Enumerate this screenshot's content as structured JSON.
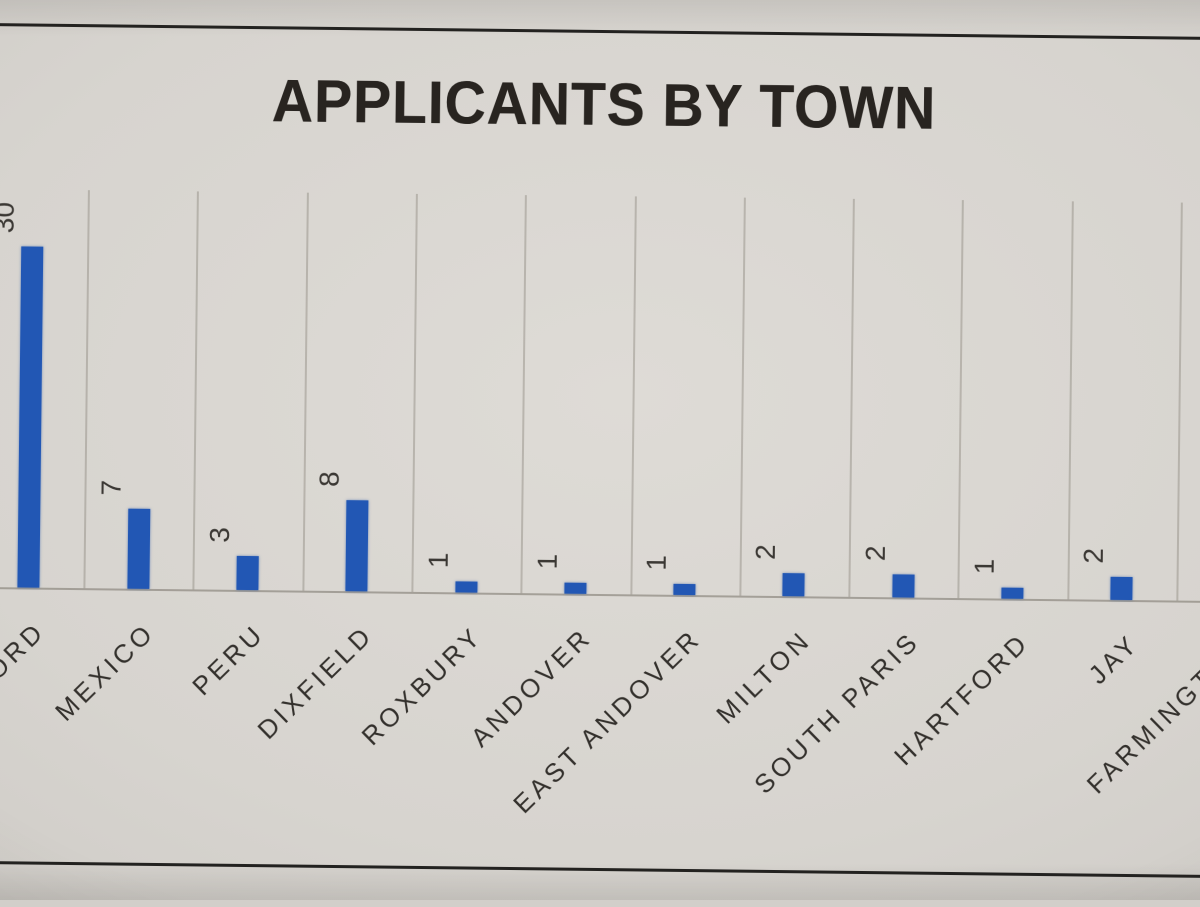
{
  "chart_data": {
    "type": "bar",
    "title": "APPLICANTS BY TOWN",
    "categories": [
      "RUMFORD",
      "MEXICO",
      "PERU",
      "DIXFIELD",
      "ROXBURY",
      "ANDOVER",
      "EAST ANDOVER",
      "MILTON",
      "SOUTH PARIS",
      "HARTFORD",
      "JAY",
      "FARMINGTON"
    ],
    "values": [
      30,
      7,
      3,
      8,
      1,
      1,
      1,
      2,
      2,
      1,
      2,
      null
    ],
    "data_labels": [
      "30",
      "7",
      "3",
      "8",
      "1",
      "1",
      "1",
      "2",
      "2",
      "1",
      "2",
      ""
    ],
    "xlabel": "",
    "ylabel": "",
    "ylim": [
      0,
      35
    ],
    "legend": "none",
    "gridlines": "vertical category separator lines only",
    "bar_color": "#2257b4",
    "label_rotation": {
      "category_labels_deg": -45,
      "value_labels_deg": -90
    },
    "partially_cropped": {
      "left_category_visible_text": "RD",
      "right_category_visible_text": "FARMINGTO",
      "right_category_bar_visible": false
    }
  }
}
